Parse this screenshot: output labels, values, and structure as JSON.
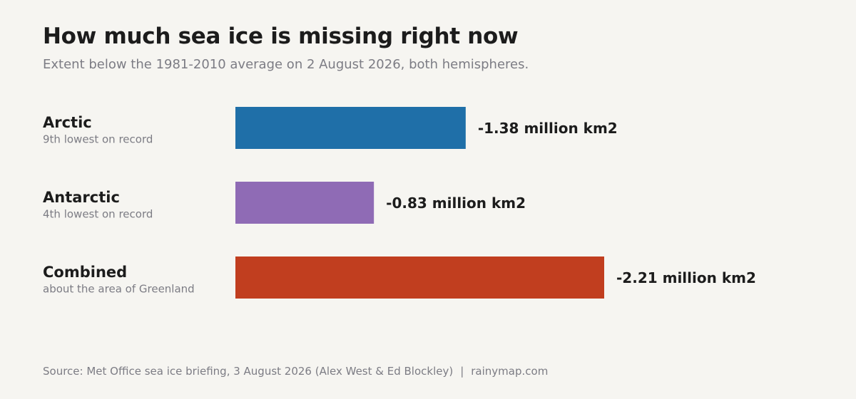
{
  "title": "How much sea ice is missing right now",
  "subtitle": "Extent below the 1981-2010 average on 2 August 2026, both hemispheres.",
  "footer": {
    "source": "Source: Met Office sea ice briefing, 3 August 2026 (Alex West & Ed Blockley)",
    "separator": "|",
    "site": "rainymap.com"
  },
  "chart_data": {
    "type": "bar",
    "orientation": "horizontal",
    "unit": "million km2",
    "categories": [
      "Arctic",
      "Antarctic",
      "Combined"
    ],
    "sublabels": [
      "9th lowest on record",
      "4th lowest on record",
      "about the area of Greenland"
    ],
    "values": [
      -1.38,
      -0.83,
      -2.21
    ],
    "value_labels": [
      "-1.38 million km2",
      "-0.83 million km2",
      "-2.21 million km2"
    ],
    "colors": [
      "#1f6fa8",
      "#8f6bb5",
      "#c13e1f"
    ],
    "grid": false,
    "legend": "none"
  }
}
